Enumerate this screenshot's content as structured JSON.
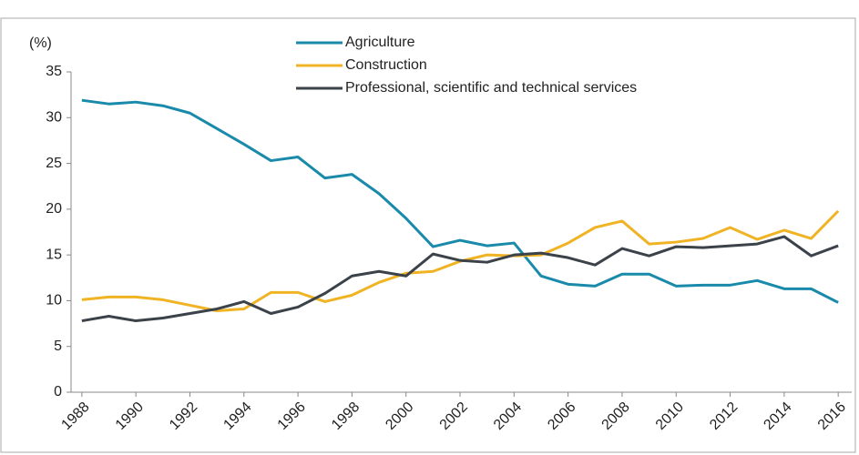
{
  "chart_data": {
    "type": "line",
    "y_axis_label": "(%)",
    "x": [
      1988,
      1989,
      1990,
      1991,
      1992,
      1993,
      1994,
      1995,
      1996,
      1997,
      1998,
      1999,
      2000,
      2001,
      2002,
      2003,
      2004,
      2005,
      2006,
      2007,
      2008,
      2009,
      2010,
      2011,
      2012,
      2013,
      2014,
      2015,
      2016
    ],
    "series": [
      {
        "name": "Agriculture",
        "color": "#1a8aab",
        "values": [
          31.9,
          31.5,
          31.7,
          31.3,
          30.5,
          28.8,
          27.1,
          25.3,
          25.7,
          23.4,
          23.8,
          21.7,
          19.0,
          15.9,
          16.6,
          16.0,
          16.3,
          12.7,
          11.8,
          11.6,
          12.9,
          12.9,
          11.6,
          11.7,
          11.7,
          12.2,
          11.3,
          11.3,
          9.8
        ]
      },
      {
        "name": "Construction",
        "color": "#f0b323",
        "values": [
          10.1,
          10.4,
          10.4,
          10.1,
          9.5,
          8.9,
          9.1,
          10.9,
          10.9,
          9.9,
          10.6,
          12.0,
          13.0,
          13.2,
          14.3,
          15.0,
          14.9,
          15.0,
          16.3,
          18.0,
          18.7,
          16.2,
          16.4,
          16.8,
          18.0,
          16.7,
          17.7,
          16.8,
          19.8
        ]
      },
      {
        "name": "Professional, scientific and technical services",
        "color": "#3b4249",
        "values": [
          7.8,
          8.3,
          7.8,
          8.1,
          8.6,
          9.1,
          9.9,
          8.6,
          9.3,
          10.8,
          12.7,
          13.2,
          12.7,
          15.1,
          14.4,
          14.2,
          15.0,
          15.2,
          14.7,
          13.9,
          15.7,
          14.9,
          15.9,
          15.8,
          16.0,
          16.2,
          17.0,
          14.9,
          16.0
        ]
      }
    ],
    "xlim": [
      1987.6,
      2016.5
    ],
    "xticks": [
      1988,
      1990,
      1992,
      1994,
      1996,
      1998,
      2000,
      2002,
      2004,
      2006,
      2008,
      2010,
      2012,
      2014,
      2016
    ],
    "ylim": [
      0,
      35
    ],
    "yticks": [
      0,
      5,
      10,
      15,
      20,
      25,
      30,
      35
    ],
    "grid": false,
    "legend": "top"
  }
}
